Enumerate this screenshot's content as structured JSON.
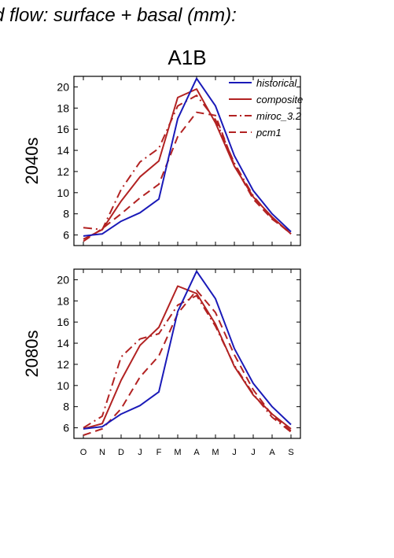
{
  "header_title": "d flow: surface + basal (mm):",
  "scenario_title": "A1B",
  "colors": {
    "historical": "#1a1ab8",
    "future": "#b22222",
    "axis": "#000000"
  },
  "chart_data": [
    {
      "type": "line",
      "panel_label": "2040s",
      "categories": [
        "O",
        "N",
        "D",
        "J",
        "F",
        "M",
        "A",
        "M",
        "J",
        "J",
        "A",
        "S"
      ],
      "ylim": [
        5,
        21
      ],
      "yticks": [
        6,
        8,
        10,
        12,
        14,
        16,
        18,
        20
      ],
      "legend_position": "top-right",
      "series": [
        {
          "name": "historical",
          "style": "solid",
          "color": "#1a1ab8",
          "values": [
            5.9,
            6.1,
            7.3,
            8.1,
            9.4,
            17.0,
            20.8,
            18.2,
            13.5,
            10.2,
            8.0,
            6.3
          ]
        },
        {
          "name": "composite",
          "style": "solid",
          "color": "#b22222",
          "values": [
            5.6,
            6.5,
            9.2,
            11.5,
            13.0,
            19.0,
            19.8,
            16.6,
            12.5,
            9.6,
            7.7,
            6.1
          ]
        },
        {
          "name": "miroc_3.2",
          "style": "dashdot",
          "color": "#b22222",
          "values": [
            6.7,
            6.5,
            10.3,
            12.9,
            14.2,
            18.2,
            19.2,
            16.9,
            12.8,
            9.7,
            7.6,
            6.1
          ]
        },
        {
          "name": "pcm1",
          "style": "dashed",
          "color": "#b22222",
          "values": [
            5.4,
            6.6,
            8.0,
            9.5,
            10.8,
            15.3,
            17.6,
            17.3,
            12.6,
            9.4,
            7.5,
            6.2
          ]
        }
      ]
    },
    {
      "type": "line",
      "panel_label": "2080s",
      "categories": [
        "O",
        "N",
        "D",
        "J",
        "F",
        "M",
        "A",
        "M",
        "J",
        "J",
        "A",
        "S"
      ],
      "ylim": [
        5,
        21
      ],
      "yticks": [
        6,
        8,
        10,
        12,
        14,
        16,
        18,
        20
      ],
      "series": [
        {
          "name": "historical",
          "style": "solid",
          "color": "#1a1ab8",
          "values": [
            5.9,
            6.1,
            7.3,
            8.1,
            9.4,
            17.0,
            20.8,
            18.2,
            13.5,
            10.2,
            8.0,
            6.3
          ]
        },
        {
          "name": "composite",
          "style": "solid",
          "color": "#b22222",
          "values": [
            5.9,
            6.4,
            10.5,
            13.8,
            15.5,
            19.4,
            18.7,
            15.8,
            11.8,
            9.1,
            7.3,
            5.9
          ]
        },
        {
          "name": "miroc_3.2",
          "style": "dashdot",
          "color": "#b22222",
          "values": [
            6.0,
            7.1,
            12.7,
            14.4,
            14.9,
            17.6,
            18.5,
            15.6,
            11.9,
            9.2,
            7.0,
            5.6
          ]
        },
        {
          "name": "pcm1",
          "style": "dashed",
          "color": "#b22222",
          "values": [
            5.3,
            5.9,
            7.8,
            10.8,
            12.8,
            16.8,
            19.0,
            16.9,
            12.9,
            9.6,
            7.2,
            5.7
          ]
        }
      ]
    }
  ]
}
